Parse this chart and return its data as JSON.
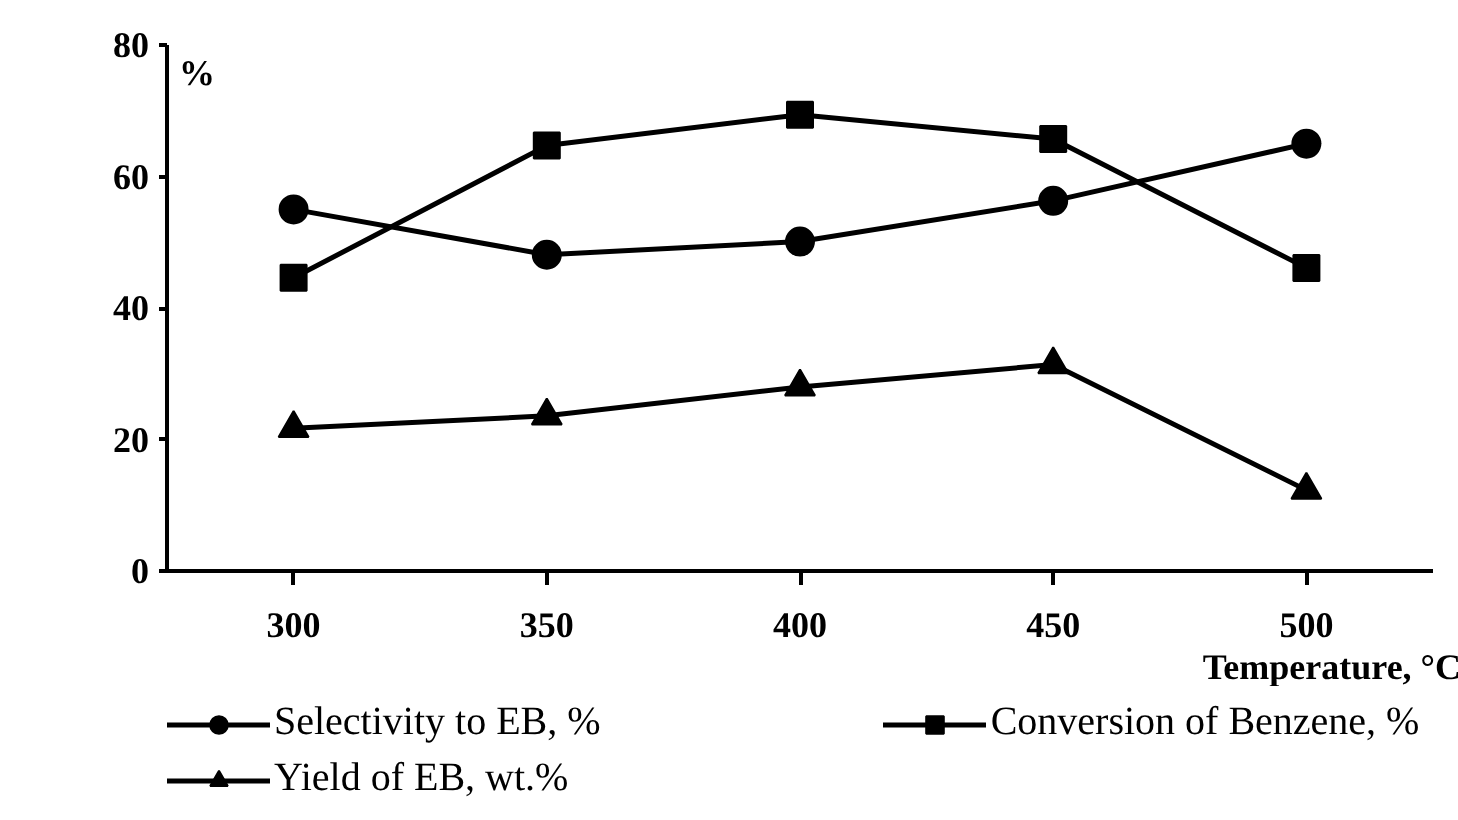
{
  "chart_data": {
    "type": "line",
    "xlabel": "Temperature, °C",
    "ylabel": "%",
    "x": [
      300,
      350,
      400,
      450,
      500
    ],
    "xlim": [
      275,
      525
    ],
    "xticks": [
      300,
      350,
      400,
      450,
      500
    ],
    "ylim": [
      0,
      80
    ],
    "yticks": [
      0,
      20,
      40,
      60,
      80
    ],
    "grid": false,
    "legend": "bottom",
    "line_style": "solid",
    "series": [
      {
        "name": "Selectivity to EB, %",
        "color": "#000000",
        "marker": "circle",
        "values": [
          55,
          48.1,
          50.1,
          56.3,
          65
        ]
      },
      {
        "name": "Conversion of Benzene, %",
        "color": "#000000",
        "marker": "square",
        "values": [
          44.6,
          64.7,
          69.4,
          65.7,
          46.1
        ]
      },
      {
        "name": "Yield of EB, wt.%",
        "color": "#000000",
        "marker": "triangle",
        "values": [
          21.7,
          23.6,
          28,
          31.4,
          12.3
        ]
      }
    ]
  }
}
